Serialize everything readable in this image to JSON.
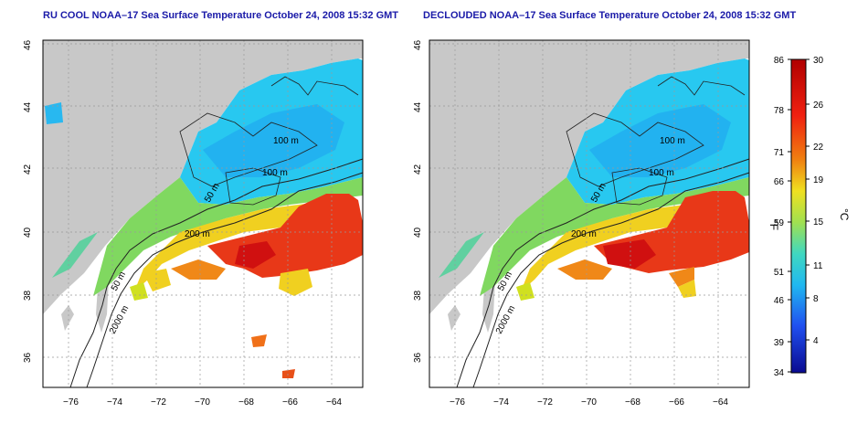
{
  "left_map": {
    "title": "RU COOL NOAA–17 Sea Surface Temperature October 24, 2008 15:32 GMT",
    "contour_labels": [
      "100 m",
      "100 m",
      "50 m",
      "200 m",
      "50 m",
      "2000 m"
    ]
  },
  "right_map": {
    "title": "DECLOUDED NOAA–17 Sea Surface Temperature October 24, 2008 15:32 GMT",
    "contour_labels": [
      "100 m",
      "100 m",
      "50 m",
      "200 m",
      "50 m",
      "2000 m"
    ]
  },
  "axes": {
    "x_ticks": [
      "−76",
      "−74",
      "−72",
      "−70",
      "−68",
      "−66",
      "−64"
    ],
    "y_ticks": [
      "46",
      "44",
      "42",
      "40",
      "38",
      "36"
    ]
  },
  "colorbar": {
    "fahrenheit_label": "°F",
    "celsius_label": "°C",
    "fahrenheit_ticks": [
      "86",
      "78",
      "71",
      "66",
      "59",
      "51",
      "46",
      "39",
      "34"
    ],
    "celsius_ticks": [
      "30",
      "26",
      "22",
      "19",
      "15",
      "11",
      "8",
      "4"
    ]
  },
  "colors": {
    "land": "#c8c8c8",
    "no_data": "#ffffff",
    "cold": "#0a0a90",
    "cool": "#20c8f0",
    "mild": "#80d860",
    "warm": "#f0e020",
    "hot": "#f07018",
    "very_hot": "#d01010",
    "title_text": "#1a1aa8"
  }
}
